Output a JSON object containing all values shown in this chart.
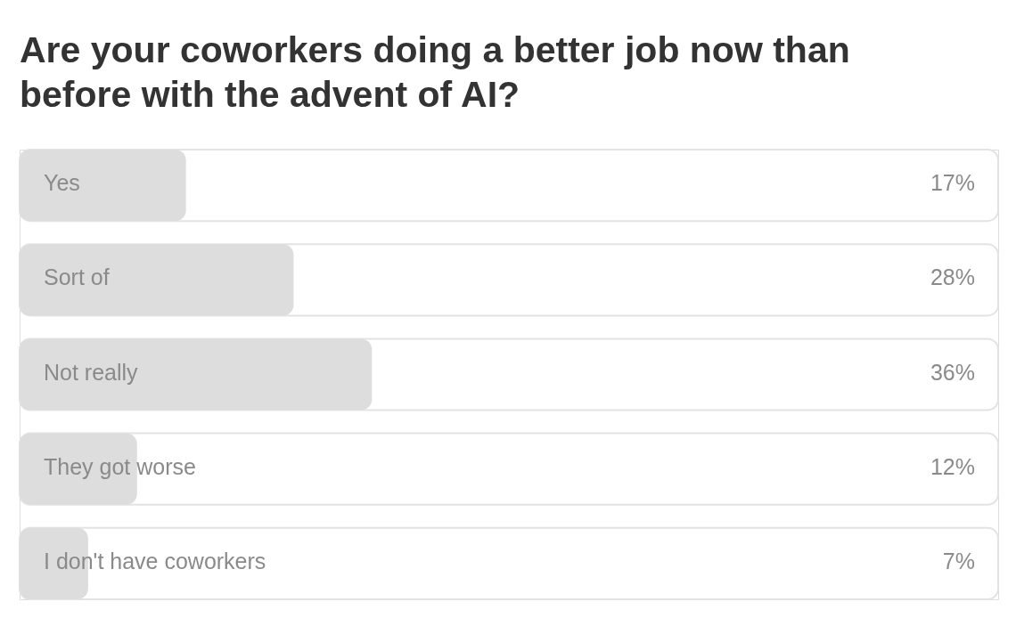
{
  "chart_data": {
    "type": "bar",
    "orientation": "horizontal",
    "title": "Are your coworkers doing a better job now than before with the advent of AI?",
    "categories": [
      "Yes",
      "Sort of",
      "Not really",
      "They got worse",
      "I don't have coworkers"
    ],
    "values": [
      17,
      28,
      36,
      12,
      7
    ],
    "value_labels": [
      "17%",
      "28%",
      "36%",
      "12%",
      "7%"
    ],
    "color": "#dddddd",
    "xlim": [
      0,
      100
    ],
    "tick_labels": false
  }
}
